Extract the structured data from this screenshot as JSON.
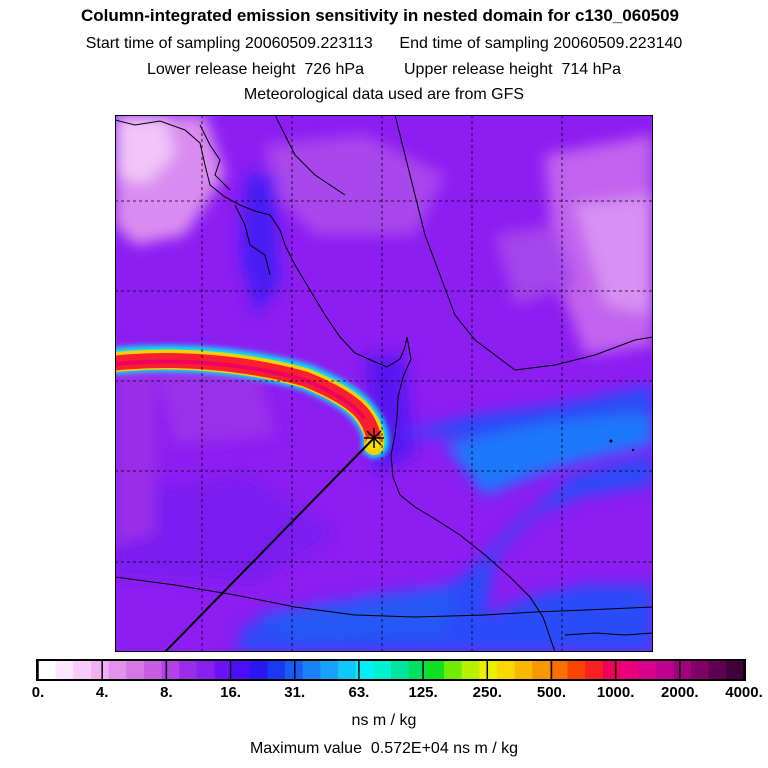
{
  "header": {
    "title": "Column-integrated emission sensitivity in nested domain for c130_060509",
    "start_label": "Start time of sampling",
    "start_value": "20060509.223113",
    "end_label": "End time of sampling",
    "end_value": "20060509.223140",
    "lower_label": "Lower release height",
    "lower_value": "726 hPa",
    "upper_label": "Upper release height",
    "upper_value": "714 hPa",
    "met_line": "Meteorological data used are from GFS"
  },
  "colorbar": {
    "colors": [
      "#ffffff",
      "#fde6fd",
      "#f8ccf8",
      "#f0b0f2",
      "#e391eb",
      "#d676e6",
      "#c85ee2",
      "#b442e6",
      "#9a2ce8",
      "#8820f0",
      "#6a12f8",
      "#4a0ff8",
      "#2a16f0",
      "#1a38f2",
      "#1a5cf8",
      "#1c82fa",
      "#18a2fc",
      "#10c8fc",
      "#00f0f8",
      "#00f0d0",
      "#00e6a0",
      "#00e060",
      "#10e020",
      "#70ec00",
      "#b8f200",
      "#e8f000",
      "#f8d800",
      "#f8b800",
      "#f89800",
      "#f87000",
      "#f84400",
      "#f82020",
      "#f00058",
      "#e8007c",
      "#d8008c",
      "#c00090",
      "#a0007c",
      "#800068",
      "#600050",
      "#400038"
    ],
    "ticks": [
      "0.",
      "4.",
      "8.",
      "16.",
      "31.",
      "63.",
      "125.",
      "250.",
      "500.",
      "1000.",
      "2000.",
      "4000."
    ],
    "units": "ns m / kg"
  },
  "max_label": "Maximum value",
  "max_value": "0.572E+04 ns m / kg"
}
